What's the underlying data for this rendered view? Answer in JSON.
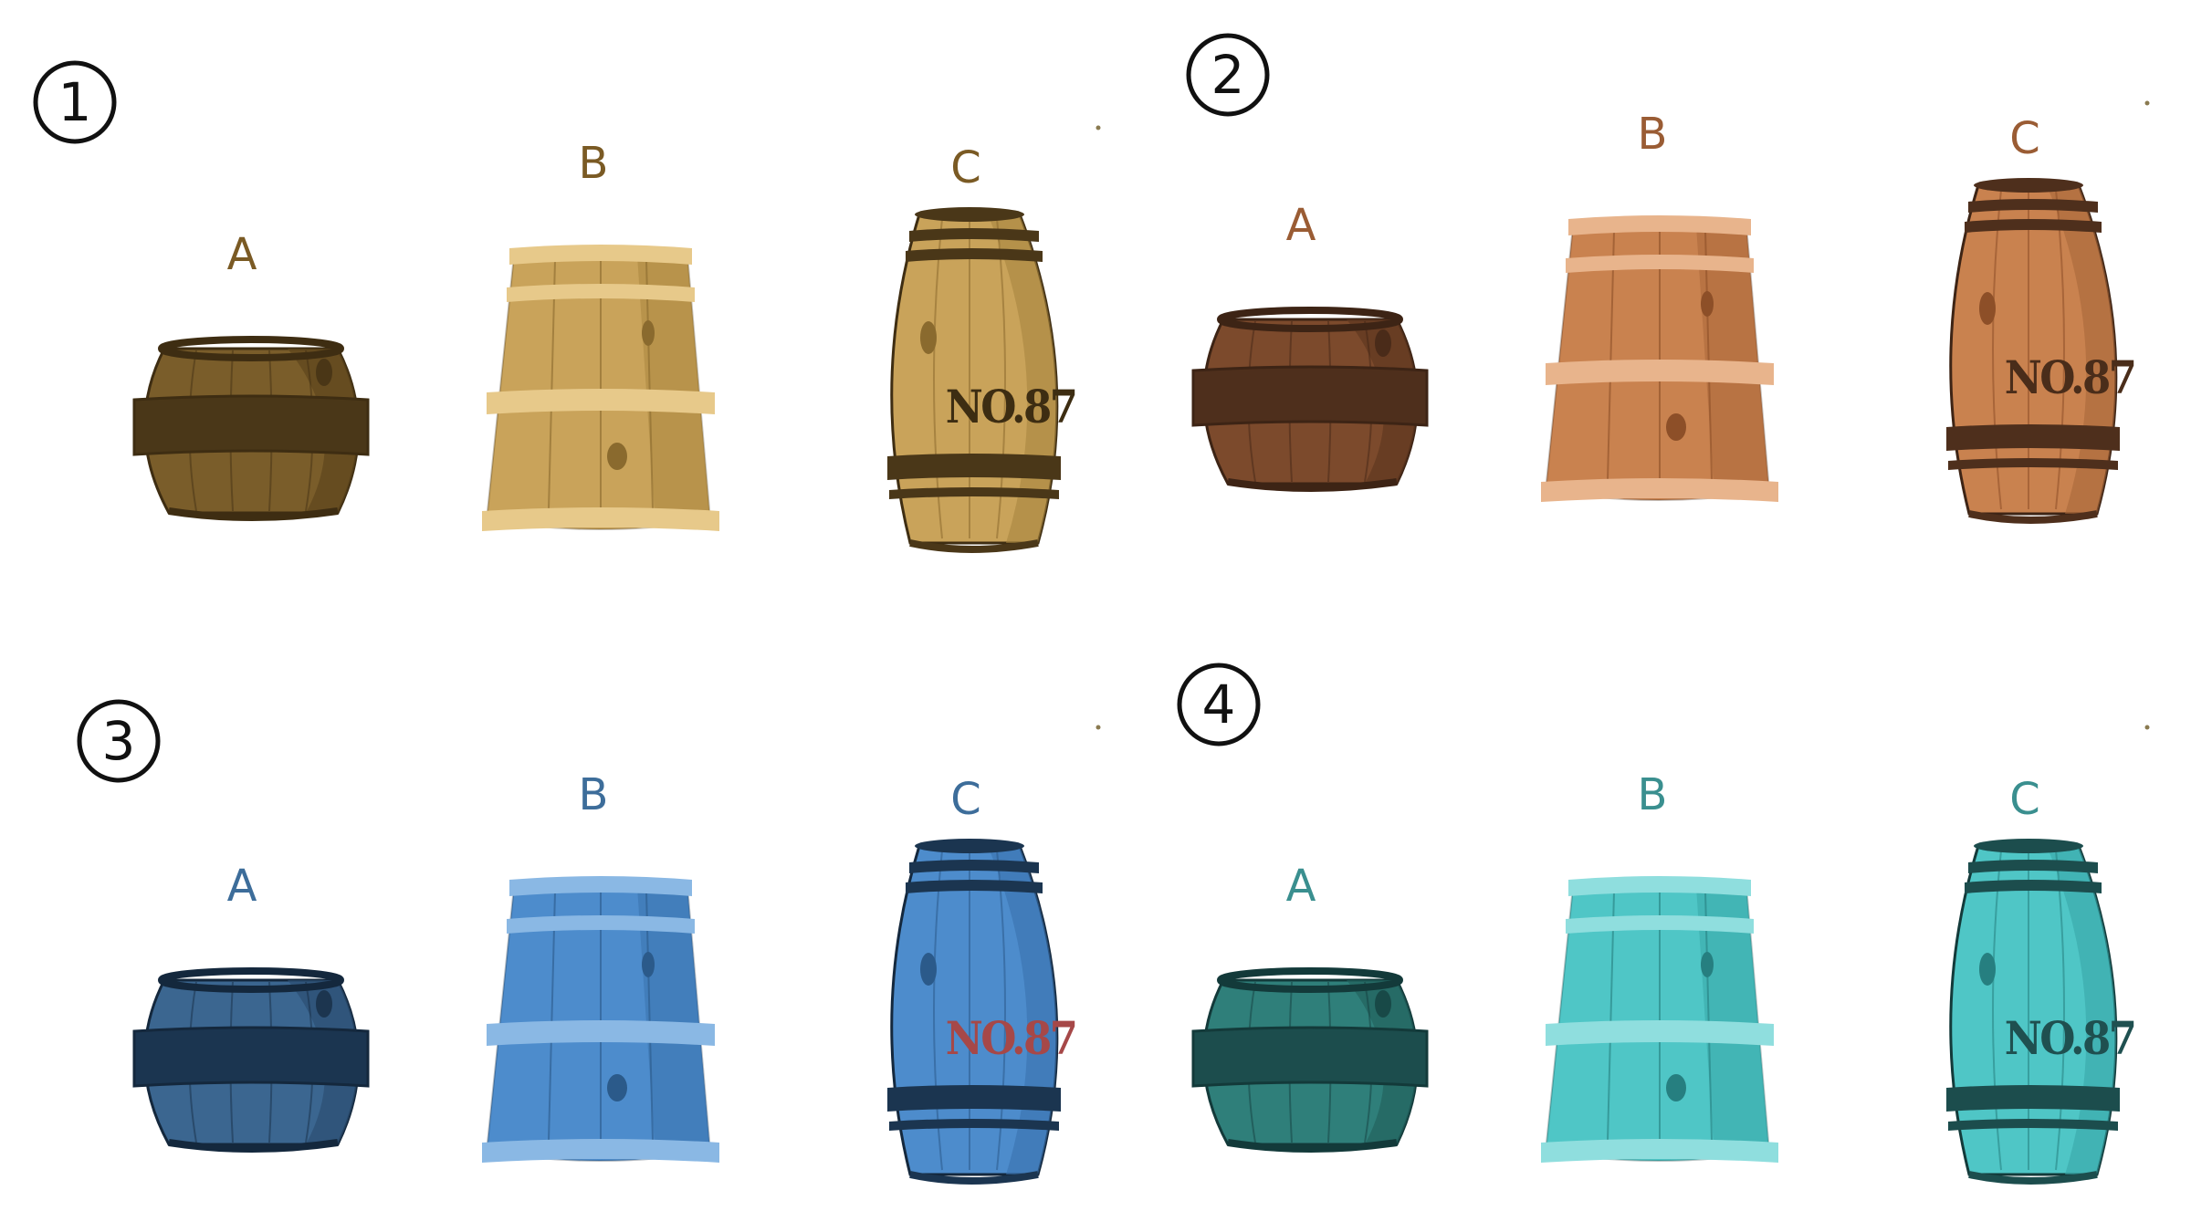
{
  "sheet": {
    "background": "#ffffff",
    "groups": [
      {
        "number": "1",
        "palette": {
          "body": "#c9a35a",
          "body_dark": "#a9863f",
          "plank": "#8a6a2e",
          "band": "#4a3718",
          "hoop_light": "#e7c98a",
          "outline": "#3e2d12",
          "letter": "#7a5a24",
          "stamp": "#3d2d12",
          "barrel_a_body": "#7a5d2a",
          "barrel_a_dark": "#5e461d"
        },
        "barrels": [
          {
            "letter": "A",
            "type": "squat-barrel"
          },
          {
            "letter": "B",
            "type": "bucket-barrel"
          },
          {
            "letter": "C",
            "type": "tall-barrel",
            "stamp": "NO.87"
          }
        ]
      },
      {
        "number": "2",
        "palette": {
          "body": "#c9824f",
          "body_dark": "#a9673a",
          "plank": "#8d4f28",
          "band": "#4e2f1c",
          "hoop_light": "#e8b48c",
          "outline": "#3d2415",
          "letter": "#9a5c34",
          "stamp": "#4a2d1a",
          "barrel_a_body": "#7c4a2c",
          "barrel_a_dark": "#5f3820"
        },
        "barrels": [
          {
            "letter": "A",
            "type": "squat-barrel"
          },
          {
            "letter": "B",
            "type": "bucket-barrel"
          },
          {
            "letter": "C",
            "type": "tall-barrel",
            "stamp": "NO.87"
          }
        ]
      },
      {
        "number": "3",
        "palette": {
          "body": "#4d8ccc",
          "body_dark": "#3a72ad",
          "plank": "#2b5a8a",
          "band": "#1b3550",
          "hoop_light": "#8ab8e4",
          "outline": "#14283d",
          "letter": "#3d6d9a",
          "stamp": "#a64848",
          "barrel_a_body": "#3b6690",
          "barrel_a_dark": "#2c4f72"
        },
        "barrels": [
          {
            "letter": "A",
            "type": "squat-barrel"
          },
          {
            "letter": "B",
            "type": "bucket-barrel"
          },
          {
            "letter": "C",
            "type": "tall-barrel",
            "stamp": "NO.87"
          }
        ]
      },
      {
        "number": "4",
        "palette": {
          "body": "#4fc6c6",
          "body_dark": "#38a7a8",
          "plank": "#267f80",
          "band": "#1c4d4d",
          "hoop_light": "#8fdede",
          "outline": "#133a3a",
          "letter": "#3a8f8f",
          "stamp": "#1f5050",
          "barrel_a_body": "#2f7f7a",
          "barrel_a_dark": "#22625e"
        },
        "barrels": [
          {
            "letter": "A",
            "type": "squat-barrel"
          },
          {
            "letter": "B",
            "type": "bucket-barrel"
          },
          {
            "letter": "C",
            "type": "tall-barrel",
            "stamp": "NO.87"
          }
        ]
      }
    ]
  }
}
